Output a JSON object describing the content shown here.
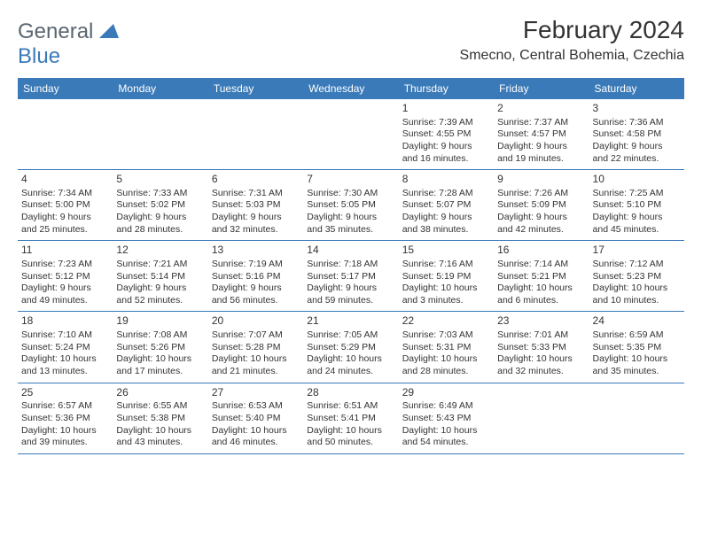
{
  "logo": {
    "text1": "General",
    "text2": "Blue"
  },
  "title": "February 2024",
  "location": "Smecno, Central Bohemia, Czechia",
  "header_bg": "#3a7ab8",
  "header_text_color": "#ffffff",
  "border_color": "#3a7ab8",
  "text_color": "#333333",
  "weekdays": [
    "Sunday",
    "Monday",
    "Tuesday",
    "Wednesday",
    "Thursday",
    "Friday",
    "Saturday"
  ],
  "weeks": [
    [
      null,
      null,
      null,
      null,
      {
        "n": "1",
        "l1": "Sunrise: 7:39 AM",
        "l2": "Sunset: 4:55 PM",
        "l3": "Daylight: 9 hours",
        "l4": "and 16 minutes."
      },
      {
        "n": "2",
        "l1": "Sunrise: 7:37 AM",
        "l2": "Sunset: 4:57 PM",
        "l3": "Daylight: 9 hours",
        "l4": "and 19 minutes."
      },
      {
        "n": "3",
        "l1": "Sunrise: 7:36 AM",
        "l2": "Sunset: 4:58 PM",
        "l3": "Daylight: 9 hours",
        "l4": "and 22 minutes."
      }
    ],
    [
      {
        "n": "4",
        "l1": "Sunrise: 7:34 AM",
        "l2": "Sunset: 5:00 PM",
        "l3": "Daylight: 9 hours",
        "l4": "and 25 minutes."
      },
      {
        "n": "5",
        "l1": "Sunrise: 7:33 AM",
        "l2": "Sunset: 5:02 PM",
        "l3": "Daylight: 9 hours",
        "l4": "and 28 minutes."
      },
      {
        "n": "6",
        "l1": "Sunrise: 7:31 AM",
        "l2": "Sunset: 5:03 PM",
        "l3": "Daylight: 9 hours",
        "l4": "and 32 minutes."
      },
      {
        "n": "7",
        "l1": "Sunrise: 7:30 AM",
        "l2": "Sunset: 5:05 PM",
        "l3": "Daylight: 9 hours",
        "l4": "and 35 minutes."
      },
      {
        "n": "8",
        "l1": "Sunrise: 7:28 AM",
        "l2": "Sunset: 5:07 PM",
        "l3": "Daylight: 9 hours",
        "l4": "and 38 minutes."
      },
      {
        "n": "9",
        "l1": "Sunrise: 7:26 AM",
        "l2": "Sunset: 5:09 PM",
        "l3": "Daylight: 9 hours",
        "l4": "and 42 minutes."
      },
      {
        "n": "10",
        "l1": "Sunrise: 7:25 AM",
        "l2": "Sunset: 5:10 PM",
        "l3": "Daylight: 9 hours",
        "l4": "and 45 minutes."
      }
    ],
    [
      {
        "n": "11",
        "l1": "Sunrise: 7:23 AM",
        "l2": "Sunset: 5:12 PM",
        "l3": "Daylight: 9 hours",
        "l4": "and 49 minutes."
      },
      {
        "n": "12",
        "l1": "Sunrise: 7:21 AM",
        "l2": "Sunset: 5:14 PM",
        "l3": "Daylight: 9 hours",
        "l4": "and 52 minutes."
      },
      {
        "n": "13",
        "l1": "Sunrise: 7:19 AM",
        "l2": "Sunset: 5:16 PM",
        "l3": "Daylight: 9 hours",
        "l4": "and 56 minutes."
      },
      {
        "n": "14",
        "l1": "Sunrise: 7:18 AM",
        "l2": "Sunset: 5:17 PM",
        "l3": "Daylight: 9 hours",
        "l4": "and 59 minutes."
      },
      {
        "n": "15",
        "l1": "Sunrise: 7:16 AM",
        "l2": "Sunset: 5:19 PM",
        "l3": "Daylight: 10 hours",
        "l4": "and 3 minutes."
      },
      {
        "n": "16",
        "l1": "Sunrise: 7:14 AM",
        "l2": "Sunset: 5:21 PM",
        "l3": "Daylight: 10 hours",
        "l4": "and 6 minutes."
      },
      {
        "n": "17",
        "l1": "Sunrise: 7:12 AM",
        "l2": "Sunset: 5:23 PM",
        "l3": "Daylight: 10 hours",
        "l4": "and 10 minutes."
      }
    ],
    [
      {
        "n": "18",
        "l1": "Sunrise: 7:10 AM",
        "l2": "Sunset: 5:24 PM",
        "l3": "Daylight: 10 hours",
        "l4": "and 13 minutes."
      },
      {
        "n": "19",
        "l1": "Sunrise: 7:08 AM",
        "l2": "Sunset: 5:26 PM",
        "l3": "Daylight: 10 hours",
        "l4": "and 17 minutes."
      },
      {
        "n": "20",
        "l1": "Sunrise: 7:07 AM",
        "l2": "Sunset: 5:28 PM",
        "l3": "Daylight: 10 hours",
        "l4": "and 21 minutes."
      },
      {
        "n": "21",
        "l1": "Sunrise: 7:05 AM",
        "l2": "Sunset: 5:29 PM",
        "l3": "Daylight: 10 hours",
        "l4": "and 24 minutes."
      },
      {
        "n": "22",
        "l1": "Sunrise: 7:03 AM",
        "l2": "Sunset: 5:31 PM",
        "l3": "Daylight: 10 hours",
        "l4": "and 28 minutes."
      },
      {
        "n": "23",
        "l1": "Sunrise: 7:01 AM",
        "l2": "Sunset: 5:33 PM",
        "l3": "Daylight: 10 hours",
        "l4": "and 32 minutes."
      },
      {
        "n": "24",
        "l1": "Sunrise: 6:59 AM",
        "l2": "Sunset: 5:35 PM",
        "l3": "Daylight: 10 hours",
        "l4": "and 35 minutes."
      }
    ],
    [
      {
        "n": "25",
        "l1": "Sunrise: 6:57 AM",
        "l2": "Sunset: 5:36 PM",
        "l3": "Daylight: 10 hours",
        "l4": "and 39 minutes."
      },
      {
        "n": "26",
        "l1": "Sunrise: 6:55 AM",
        "l2": "Sunset: 5:38 PM",
        "l3": "Daylight: 10 hours",
        "l4": "and 43 minutes."
      },
      {
        "n": "27",
        "l1": "Sunrise: 6:53 AM",
        "l2": "Sunset: 5:40 PM",
        "l3": "Daylight: 10 hours",
        "l4": "and 46 minutes."
      },
      {
        "n": "28",
        "l1": "Sunrise: 6:51 AM",
        "l2": "Sunset: 5:41 PM",
        "l3": "Daylight: 10 hours",
        "l4": "and 50 minutes."
      },
      {
        "n": "29",
        "l1": "Sunrise: 6:49 AM",
        "l2": "Sunset: 5:43 PM",
        "l3": "Daylight: 10 hours",
        "l4": "and 54 minutes."
      },
      null,
      null
    ]
  ]
}
